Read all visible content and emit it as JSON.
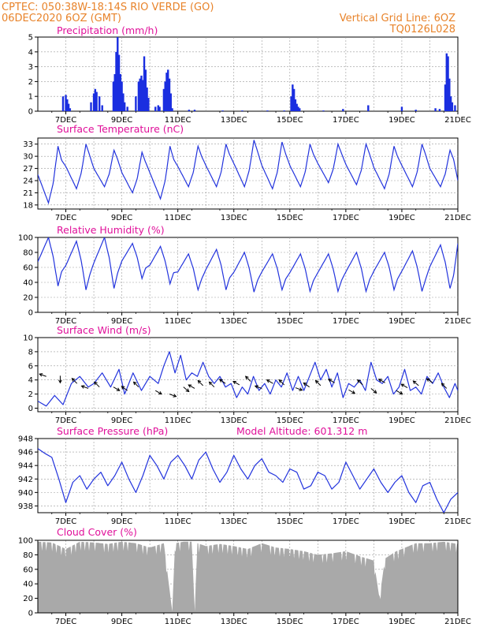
{
  "header": {
    "line1": "CPTEC:   050:38W-18:14S  RIO VERDE (GO)",
    "line2": "06DEC2020 6OZ (GMT)",
    "right1": "Vertical Grid Line: 6OZ",
    "right2": "TQ0126L028"
  },
  "colors": {
    "series": "#2233dd",
    "bar": "#1a2ee0",
    "cloud": "#a9a9a9",
    "title": "#e0109a",
    "header": "#e8832a"
  },
  "x_ticks": [
    "7DEC",
    "9DEC",
    "11DEC",
    "13DEC",
    "15DEC",
    "17DEC",
    "19DEC",
    "21DEC"
  ],
  "chart_data": [
    {
      "id": "precipitation",
      "type": "bar",
      "title": "Precipitation  (mm/h)",
      "ylim": [
        0,
        5
      ],
      "yticks": [
        0,
        1,
        2,
        3,
        4,
        5
      ],
      "x_range_days": [
        6.0,
        21.0
      ],
      "values_xy": [
        [
          6.9,
          1.0
        ],
        [
          7.0,
          1.1
        ],
        [
          7.05,
          0.8
        ],
        [
          7.1,
          0.5
        ],
        [
          7.15,
          0.2
        ],
        [
          7.9,
          0.6
        ],
        [
          8.0,
          1.2
        ],
        [
          8.05,
          1.5
        ],
        [
          8.1,
          1.3
        ],
        [
          8.2,
          1.0
        ],
        [
          8.3,
          0.4
        ],
        [
          8.7,
          2.0
        ],
        [
          8.75,
          2.5
        ],
        [
          8.8,
          4.0
        ],
        [
          8.85,
          5.0
        ],
        [
          8.9,
          3.8
        ],
        [
          8.95,
          2.5
        ],
        [
          9.0,
          2.0
        ],
        [
          9.05,
          1.2
        ],
        [
          9.1,
          0.6
        ],
        [
          9.2,
          0.3
        ],
        [
          9.5,
          1.0
        ],
        [
          9.6,
          2.0
        ],
        [
          9.65,
          2.2
        ],
        [
          9.7,
          2.4
        ],
        [
          9.75,
          2.1
        ],
        [
          9.8,
          3.7
        ],
        [
          9.85,
          2.8
        ],
        [
          9.9,
          1.6
        ],
        [
          9.95,
          0.9
        ],
        [
          10.2,
          0.3
        ],
        [
          10.3,
          0.4
        ],
        [
          10.35,
          0.3
        ],
        [
          10.5,
          1.5
        ],
        [
          10.55,
          2.0
        ],
        [
          10.6,
          2.6
        ],
        [
          10.65,
          2.8
        ],
        [
          10.7,
          2.2
        ],
        [
          10.75,
          1.2
        ],
        [
          10.8,
          0.2
        ],
        [
          11.4,
          0.1
        ],
        [
          11.6,
          0.1
        ],
        [
          12.6,
          0.05
        ],
        [
          13.3,
          0.05
        ],
        [
          14.2,
          0.05
        ],
        [
          14.8,
          0.05
        ],
        [
          15.05,
          1.0
        ],
        [
          15.1,
          1.8
        ],
        [
          15.15,
          1.5
        ],
        [
          15.2,
          0.8
        ],
        [
          15.25,
          0.5
        ],
        [
          15.3,
          0.3
        ],
        [
          15.35,
          0.2
        ],
        [
          16.2,
          0.05
        ],
        [
          16.9,
          0.15
        ],
        [
          17.8,
          0.4
        ],
        [
          19.0,
          0.3
        ],
        [
          19.5,
          0.1
        ],
        [
          20.2,
          0.2
        ],
        [
          20.35,
          0.15
        ],
        [
          20.55,
          1.8
        ],
        [
          20.6,
          3.9
        ],
        [
          20.65,
          3.7
        ],
        [
          20.7,
          2.2
        ],
        [
          20.75,
          1.0
        ],
        [
          20.8,
          0.6
        ],
        [
          20.9,
          0.4
        ]
      ]
    },
    {
      "id": "temperature",
      "type": "line",
      "title": "Surface Temperature (nC)",
      "ylim": [
        17,
        34.5
      ],
      "yticks": [
        18,
        21,
        24,
        27,
        30,
        33
      ],
      "x_range_days": [
        6.0,
        21.0
      ],
      "highs": [
        32.5,
        33.0,
        31.5,
        31.0,
        32.5,
        32.5,
        33.0,
        34.0,
        33.5,
        33.0,
        33.0,
        33.0,
        32.5,
        33.0,
        31.5
      ],
      "lows": [
        18.5,
        22.0,
        22.5,
        21.0,
        19.5,
        22.5,
        22.5,
        22.5,
        22.0,
        22.5,
        23.5,
        23.0,
        22.0,
        22.5,
        22.5
      ],
      "end_value": 24.0
    },
    {
      "id": "humidity",
      "type": "line",
      "title": "Relative Humidity (%)",
      "ylim": [
        0,
        100
      ],
      "yticks": [
        0,
        20,
        40,
        60,
        80,
        100
      ],
      "x_range_days": [
        6.0,
        21.0
      ],
      "mins": [
        35,
        30,
        32,
        45,
        38,
        30,
        30,
        27,
        30,
        28,
        28,
        28,
        30,
        28,
        32
      ],
      "maxs": [
        100,
        95,
        100,
        92,
        88,
        78,
        84,
        80,
        78,
        78,
        78,
        80,
        80,
        82,
        90
      ],
      "end_value": 92
    },
    {
      "id": "wind",
      "type": "line",
      "title": "Surface Wind (m/s)",
      "ylim": [
        -0.5,
        10
      ],
      "yticks": [
        0,
        2,
        4,
        6,
        8,
        10
      ],
      "x_range_days": [
        6.0,
        21.0
      ],
      "series_xy": [
        [
          6.0,
          1.0
        ],
        [
          6.3,
          0.3
        ],
        [
          6.6,
          1.8
        ],
        [
          6.9,
          0.5
        ],
        [
          7.2,
          3.5
        ],
        [
          7.5,
          4.5
        ],
        [
          7.8,
          3.0
        ],
        [
          8.0,
          3.5
        ],
        [
          8.3,
          5.0
        ],
        [
          8.6,
          3.0
        ],
        [
          8.9,
          5.5
        ],
        [
          9.1,
          2.0
        ],
        [
          9.4,
          5.0
        ],
        [
          9.7,
          2.5
        ],
        [
          10.0,
          4.5
        ],
        [
          10.3,
          3.5
        ],
        [
          10.5,
          6.0
        ],
        [
          10.7,
          8.0
        ],
        [
          10.9,
          5.0
        ],
        [
          11.1,
          7.5
        ],
        [
          11.3,
          4.0
        ],
        [
          11.5,
          5.0
        ],
        [
          11.7,
          4.5
        ],
        [
          11.9,
          6.5
        ],
        [
          12.1,
          4.5
        ],
        [
          12.3,
          3.5
        ],
        [
          12.5,
          4.5
        ],
        [
          12.7,
          3.0
        ],
        [
          12.9,
          3.5
        ],
        [
          13.1,
          1.5
        ],
        [
          13.3,
          3.0
        ],
        [
          13.5,
          2.0
        ],
        [
          13.7,
          4.5
        ],
        [
          13.9,
          2.5
        ],
        [
          14.1,
          3.5
        ],
        [
          14.3,
          2.0
        ],
        [
          14.5,
          4.0
        ],
        [
          14.7,
          3.0
        ],
        [
          14.9,
          5.0
        ],
        [
          15.1,
          2.5
        ],
        [
          15.3,
          4.5
        ],
        [
          15.5,
          2.5
        ],
        [
          15.7,
          4.5
        ],
        [
          15.9,
          6.5
        ],
        [
          16.1,
          4.0
        ],
        [
          16.3,
          5.5
        ],
        [
          16.5,
          3.0
        ],
        [
          16.7,
          5.0
        ],
        [
          16.9,
          1.5
        ],
        [
          17.1,
          3.5
        ],
        [
          17.3,
          3.0
        ],
        [
          17.5,
          4.0
        ],
        [
          17.7,
          2.5
        ],
        [
          17.9,
          6.5
        ],
        [
          18.1,
          4.0
        ],
        [
          18.3,
          3.5
        ],
        [
          18.5,
          4.5
        ],
        [
          18.7,
          2.0
        ],
        [
          18.9,
          3.0
        ],
        [
          19.1,
          5.5
        ],
        [
          19.3,
          2.5
        ],
        [
          19.5,
          3.0
        ],
        [
          19.7,
          2.0
        ],
        [
          19.9,
          4.5
        ],
        [
          20.1,
          3.5
        ],
        [
          20.3,
          5.0
        ],
        [
          20.5,
          3.0
        ],
        [
          20.7,
          1.5
        ],
        [
          20.9,
          3.5
        ],
        [
          21.0,
          2.5
        ]
      ],
      "arrows": [
        [
          6.3,
          4.5,
          200
        ],
        [
          6.8,
          4.6,
          90
        ],
        [
          7.4,
          3.5,
          225
        ],
        [
          7.8,
          2.8,
          200
        ],
        [
          8.2,
          3.0,
          225
        ],
        [
          8.7,
          3.0,
          30
        ],
        [
          9.2,
          2.5,
          215
        ],
        [
          9.6,
          3.0,
          225
        ],
        [
          10.2,
          2.5,
          30
        ],
        [
          10.7,
          2.0,
          20
        ],
        [
          11.2,
          3.0,
          40
        ],
        [
          11.6,
          2.8,
          210
        ],
        [
          11.9,
          3.2,
          225
        ],
        [
          12.3,
          3.0,
          225
        ],
        [
          12.7,
          3.5,
          215
        ],
        [
          13.2,
          3.3,
          210
        ],
        [
          13.6,
          3.8,
          225
        ],
        [
          14.0,
          2.8,
          200
        ],
        [
          14.4,
          3.5,
          210
        ],
        [
          14.8,
          3.3,
          225
        ],
        [
          15.2,
          2.9,
          20
        ],
        [
          15.7,
          3.0,
          215
        ],
        [
          16.1,
          3.2,
          225
        ],
        [
          16.6,
          3.6,
          210
        ],
        [
          17.1,
          2.6,
          30
        ],
        [
          17.6,
          3.3,
          225
        ],
        [
          17.9,
          2.8,
          40
        ],
        [
          18.4,
          3.6,
          210
        ],
        [
          18.8,
          2.5,
          30
        ],
        [
          19.2,
          2.9,
          210
        ],
        [
          19.6,
          3.2,
          220
        ],
        [
          20.1,
          3.6,
          215
        ],
        [
          20.6,
          2.8,
          225
        ]
      ]
    },
    {
      "id": "pressure",
      "type": "line",
      "title": "Surface Pressure (hPa)",
      "subtitle": "Model Altitude: 601.312 m",
      "ylim": [
        937,
        948
      ],
      "yticks": [
        938,
        940,
        942,
        944,
        946,
        948
      ],
      "x_range_days": [
        6.0,
        21.0
      ],
      "series_xy": [
        [
          6.0,
          946.5
        ],
        [
          6.25,
          945.8
        ],
        [
          6.5,
          945.2
        ],
        [
          6.75,
          942.0
        ],
        [
          7.0,
          938.5
        ],
        [
          7.25,
          941.5
        ],
        [
          7.5,
          942.5
        ],
        [
          7.75,
          940.5
        ],
        [
          8.0,
          942.0
        ],
        [
          8.25,
          943.0
        ],
        [
          8.5,
          941.0
        ],
        [
          8.75,
          942.5
        ],
        [
          9.0,
          944.5
        ],
        [
          9.25,
          942.0
        ],
        [
          9.5,
          940.0
        ],
        [
          9.75,
          942.5
        ],
        [
          10.0,
          945.5
        ],
        [
          10.25,
          944.0
        ],
        [
          10.5,
          942.0
        ],
        [
          10.75,
          944.5
        ],
        [
          11.0,
          945.5
        ],
        [
          11.25,
          944.0
        ],
        [
          11.5,
          942.0
        ],
        [
          11.75,
          944.8
        ],
        [
          12.0,
          946.0
        ],
        [
          12.25,
          943.5
        ],
        [
          12.5,
          941.5
        ],
        [
          12.75,
          943.0
        ],
        [
          13.0,
          945.5
        ],
        [
          13.25,
          943.5
        ],
        [
          13.5,
          942.0
        ],
        [
          13.75,
          944.0
        ],
        [
          14.0,
          945.0
        ],
        [
          14.25,
          943.0
        ],
        [
          14.5,
          942.5
        ],
        [
          14.75,
          941.5
        ],
        [
          15.0,
          943.5
        ],
        [
          15.25,
          943.0
        ],
        [
          15.5,
          940.5
        ],
        [
          15.75,
          941.0
        ],
        [
          16.0,
          943.0
        ],
        [
          16.25,
          942.5
        ],
        [
          16.5,
          940.5
        ],
        [
          16.75,
          941.5
        ],
        [
          17.0,
          944.5
        ],
        [
          17.25,
          942.5
        ],
        [
          17.5,
          940.5
        ],
        [
          17.75,
          942.0
        ],
        [
          18.0,
          943.5
        ],
        [
          18.25,
          941.5
        ],
        [
          18.5,
          940.0
        ],
        [
          18.75,
          941.5
        ],
        [
          19.0,
          942.5
        ],
        [
          19.25,
          940.0
        ],
        [
          19.5,
          938.5
        ],
        [
          19.75,
          941.0
        ],
        [
          20.0,
          941.5
        ],
        [
          20.25,
          939.0
        ],
        [
          20.5,
          937.0
        ],
        [
          20.75,
          939.0
        ],
        [
          21.0,
          940.0
        ]
      ]
    },
    {
      "id": "cloud",
      "type": "area",
      "title": "Cloud Cover (%)",
      "ylim": [
        0,
        100
      ],
      "yticks": [
        0,
        20,
        40,
        60,
        80,
        100
      ],
      "x_range_days": [
        6.0,
        21.0
      ],
      "series_xy": [
        [
          6.0,
          98
        ],
        [
          6.5,
          97
        ],
        [
          7.0,
          88
        ],
        [
          7.5,
          98
        ],
        [
          8.0,
          97
        ],
        [
          8.5,
          95
        ],
        [
          9.0,
          98
        ],
        [
          9.5,
          96
        ],
        [
          10.0,
          90
        ],
        [
          10.5,
          96
        ],
        [
          10.8,
          2
        ],
        [
          10.9,
          96
        ],
        [
          11.2,
          98
        ],
        [
          11.5,
          98
        ],
        [
          11.6,
          5
        ],
        [
          11.7,
          96
        ],
        [
          12.0,
          92
        ],
        [
          12.5,
          95
        ],
        [
          13.0,
          92
        ],
        [
          13.5,
          88
        ],
        [
          14.0,
          96
        ],
        [
          14.5,
          90
        ],
        [
          15.0,
          88
        ],
        [
          15.5,
          85
        ],
        [
          16.0,
          80
        ],
        [
          16.5,
          82
        ],
        [
          17.0,
          85
        ],
        [
          17.5,
          78
        ],
        [
          18.0,
          72
        ],
        [
          18.2,
          20
        ],
        [
          18.4,
          75
        ],
        [
          18.8,
          85
        ],
        [
          19.0,
          88
        ],
        [
          19.5,
          96
        ],
        [
          20.0,
          96
        ],
        [
          20.5,
          98
        ],
        [
          21.0,
          95
        ]
      ]
    }
  ]
}
